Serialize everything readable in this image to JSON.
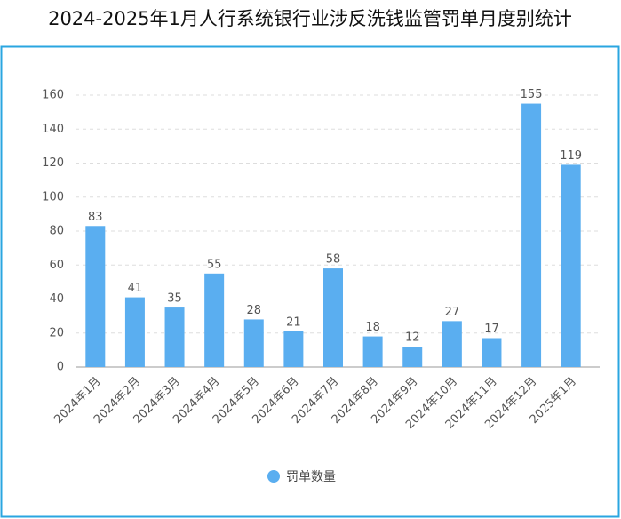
{
  "chart_data": {
    "type": "bar",
    "title": "2024-2025年1月人行系统银行业涉反洗钱监管罚单月度别统计",
    "categories": [
      "2024年1月",
      "2024年2月",
      "2024年3月",
      "2024年4月",
      "2024年5月",
      "2024年6月",
      "2024年7月",
      "2024年8月",
      "2024年9月",
      "2024年10月",
      "2024年11月",
      "2024年12月",
      "2025年1月"
    ],
    "series": [
      {
        "name": "罚单数量",
        "color": "#5aaef0",
        "values": [
          83,
          41,
          35,
          55,
          28,
          21,
          58,
          18,
          12,
          27,
          17,
          155,
          119
        ]
      }
    ],
    "ylim": [
      0,
      160
    ],
    "yticks": [
      0,
      20,
      40,
      60,
      80,
      100,
      120,
      140,
      160
    ],
    "grid": true,
    "data_labels": true,
    "legend_position": "bottom"
  }
}
